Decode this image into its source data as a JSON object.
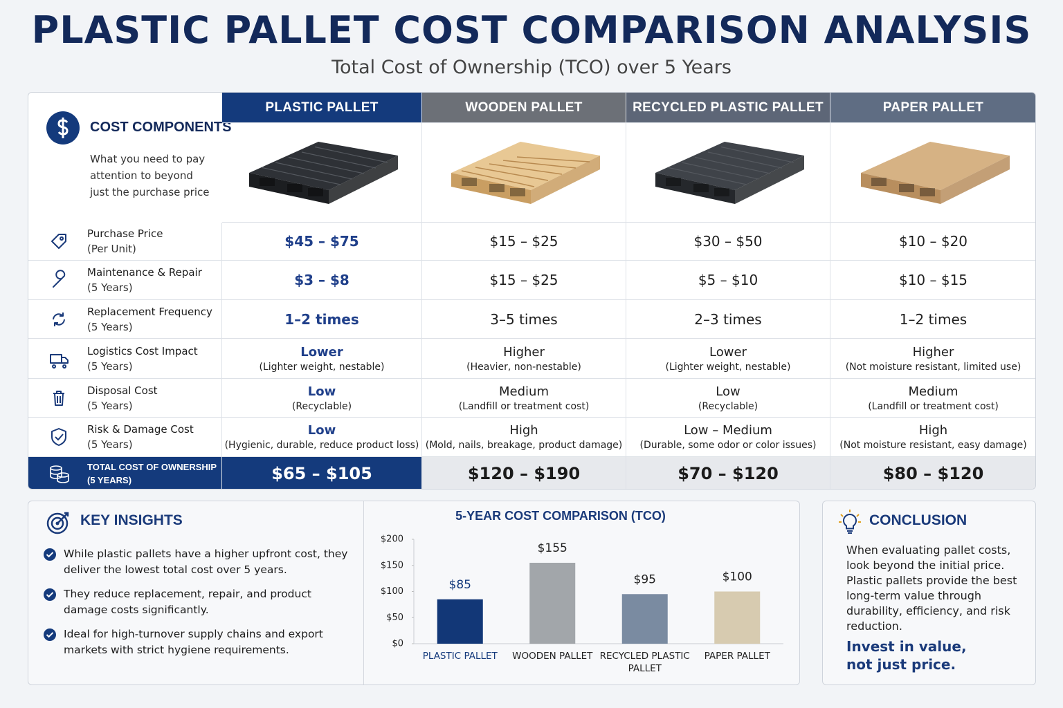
{
  "header": {
    "title": "PLASTIC PALLET COST COMPARISON ANALYSIS",
    "subtitle": "Total Cost of Ownership (TCO) over 5 Years"
  },
  "table": {
    "header_title": "COST COMPONENTS",
    "header_note": "What you need to pay attention to beyond just the purchase price",
    "columns": [
      "PLASTIC PALLET",
      "WOODEN PALLET",
      "RECYCLED PLASTIC PALLET",
      "PAPER PALLET"
    ],
    "rows": [
      {
        "label": "Purchase Price",
        "sub": "(Per Unit)",
        "cells": [
          {
            "main": "$45 – $75"
          },
          {
            "main": "$15 – $25"
          },
          {
            "main": "$30 – $50"
          },
          {
            "main": "$10 – $20"
          }
        ]
      },
      {
        "label": "Maintenance & Repair",
        "sub": "(5 Years)",
        "cells": [
          {
            "main": "$3 – $8"
          },
          {
            "main": "$15 – $25"
          },
          {
            "main": "$5 – $10"
          },
          {
            "main": "$10 – $15"
          }
        ]
      },
      {
        "label": "Replacement Frequency",
        "sub": "(5 Years)",
        "cells": [
          {
            "main": "1–2 times"
          },
          {
            "main": "3–5 times"
          },
          {
            "main": "2–3 times"
          },
          {
            "main": "1–2 times"
          }
        ]
      },
      {
        "label": "Logistics Cost Impact",
        "sub": "(5 Years)",
        "cells": [
          {
            "main": "Lower",
            "note": "(Lighter weight, nestable)"
          },
          {
            "main": "Higher",
            "note": "(Heavier, non-nestable)"
          },
          {
            "main": "Lower",
            "note": "(Lighter weight, nestable)"
          },
          {
            "main": "Higher",
            "note": "(Not moisture resistant, limited use)"
          }
        ]
      },
      {
        "label": "Disposal Cost",
        "sub": "(5 Years)",
        "cells": [
          {
            "main": "Low",
            "note": "(Recyclable)"
          },
          {
            "main": "Medium",
            "note": "(Landfill or treatment cost)"
          },
          {
            "main": "Low",
            "note": "(Recyclable)"
          },
          {
            "main": "Medium",
            "note": "(Landfill or treatment cost)"
          }
        ]
      },
      {
        "label": "Risk & Damage Cost",
        "sub": "(5 Years)",
        "cells": [
          {
            "main": "Low",
            "note": "(Hygienic, durable, reduce product loss)"
          },
          {
            "main": "High",
            "note": "(Mold, nails, breakage, product damage)"
          },
          {
            "main": "Low – Medium",
            "note": "(Durable, some odor or color issues)"
          },
          {
            "main": "High",
            "note": "(Not moisture resistant, easy damage)"
          }
        ]
      }
    ],
    "total": {
      "label": "TOTAL COST OF OWNERSHIP",
      "sub": "(5 YEARS)",
      "cells": [
        "$65 – $105",
        "$120 – $190",
        "$70 – $120",
        "$80 – $120"
      ]
    }
  },
  "insights": {
    "title": "KEY INSIGHTS",
    "items": [
      "While plastic pallets have a higher upfront cost, they deliver the lowest total cost over 5 years.",
      "They reduce replacement, repair, and product damage costs significantly.",
      "Ideal for high-turnover supply chains and export markets with strict hygiene requirements."
    ]
  },
  "chart_data": {
    "type": "bar",
    "title": "5-YEAR COST COMPARISON (TCO)",
    "categories": [
      "PLASTIC PALLET",
      "WOODEN PALLET",
      "RECYCLED PLASTIC PALLET",
      "PAPER PALLET"
    ],
    "values": [
      85,
      155,
      95,
      100
    ],
    "value_labels": [
      "$85",
      "$155",
      "$95",
      "$100"
    ],
    "colors": [
      "#123777",
      "#a2a6aa",
      "#7a8ba1",
      "#d7cbb0"
    ],
    "ylim": [
      0,
      200
    ],
    "yticks": [
      {
        "value": 0,
        "label": "$0"
      },
      {
        "value": 50,
        "label": "$50"
      },
      {
        "value": 100,
        "label": "$100"
      },
      {
        "value": 150,
        "label": "$150"
      },
      {
        "value": 200,
        "label": "$200"
      }
    ],
    "grid": false
  },
  "conclusion": {
    "title": "CONCLUSION",
    "body": "When evaluating pallet costs, look beyond the initial price. Plastic pallets provide the best long-term value through durability, efficiency, and risk reduction.",
    "emphasis": "Invest in value, not just price."
  }
}
